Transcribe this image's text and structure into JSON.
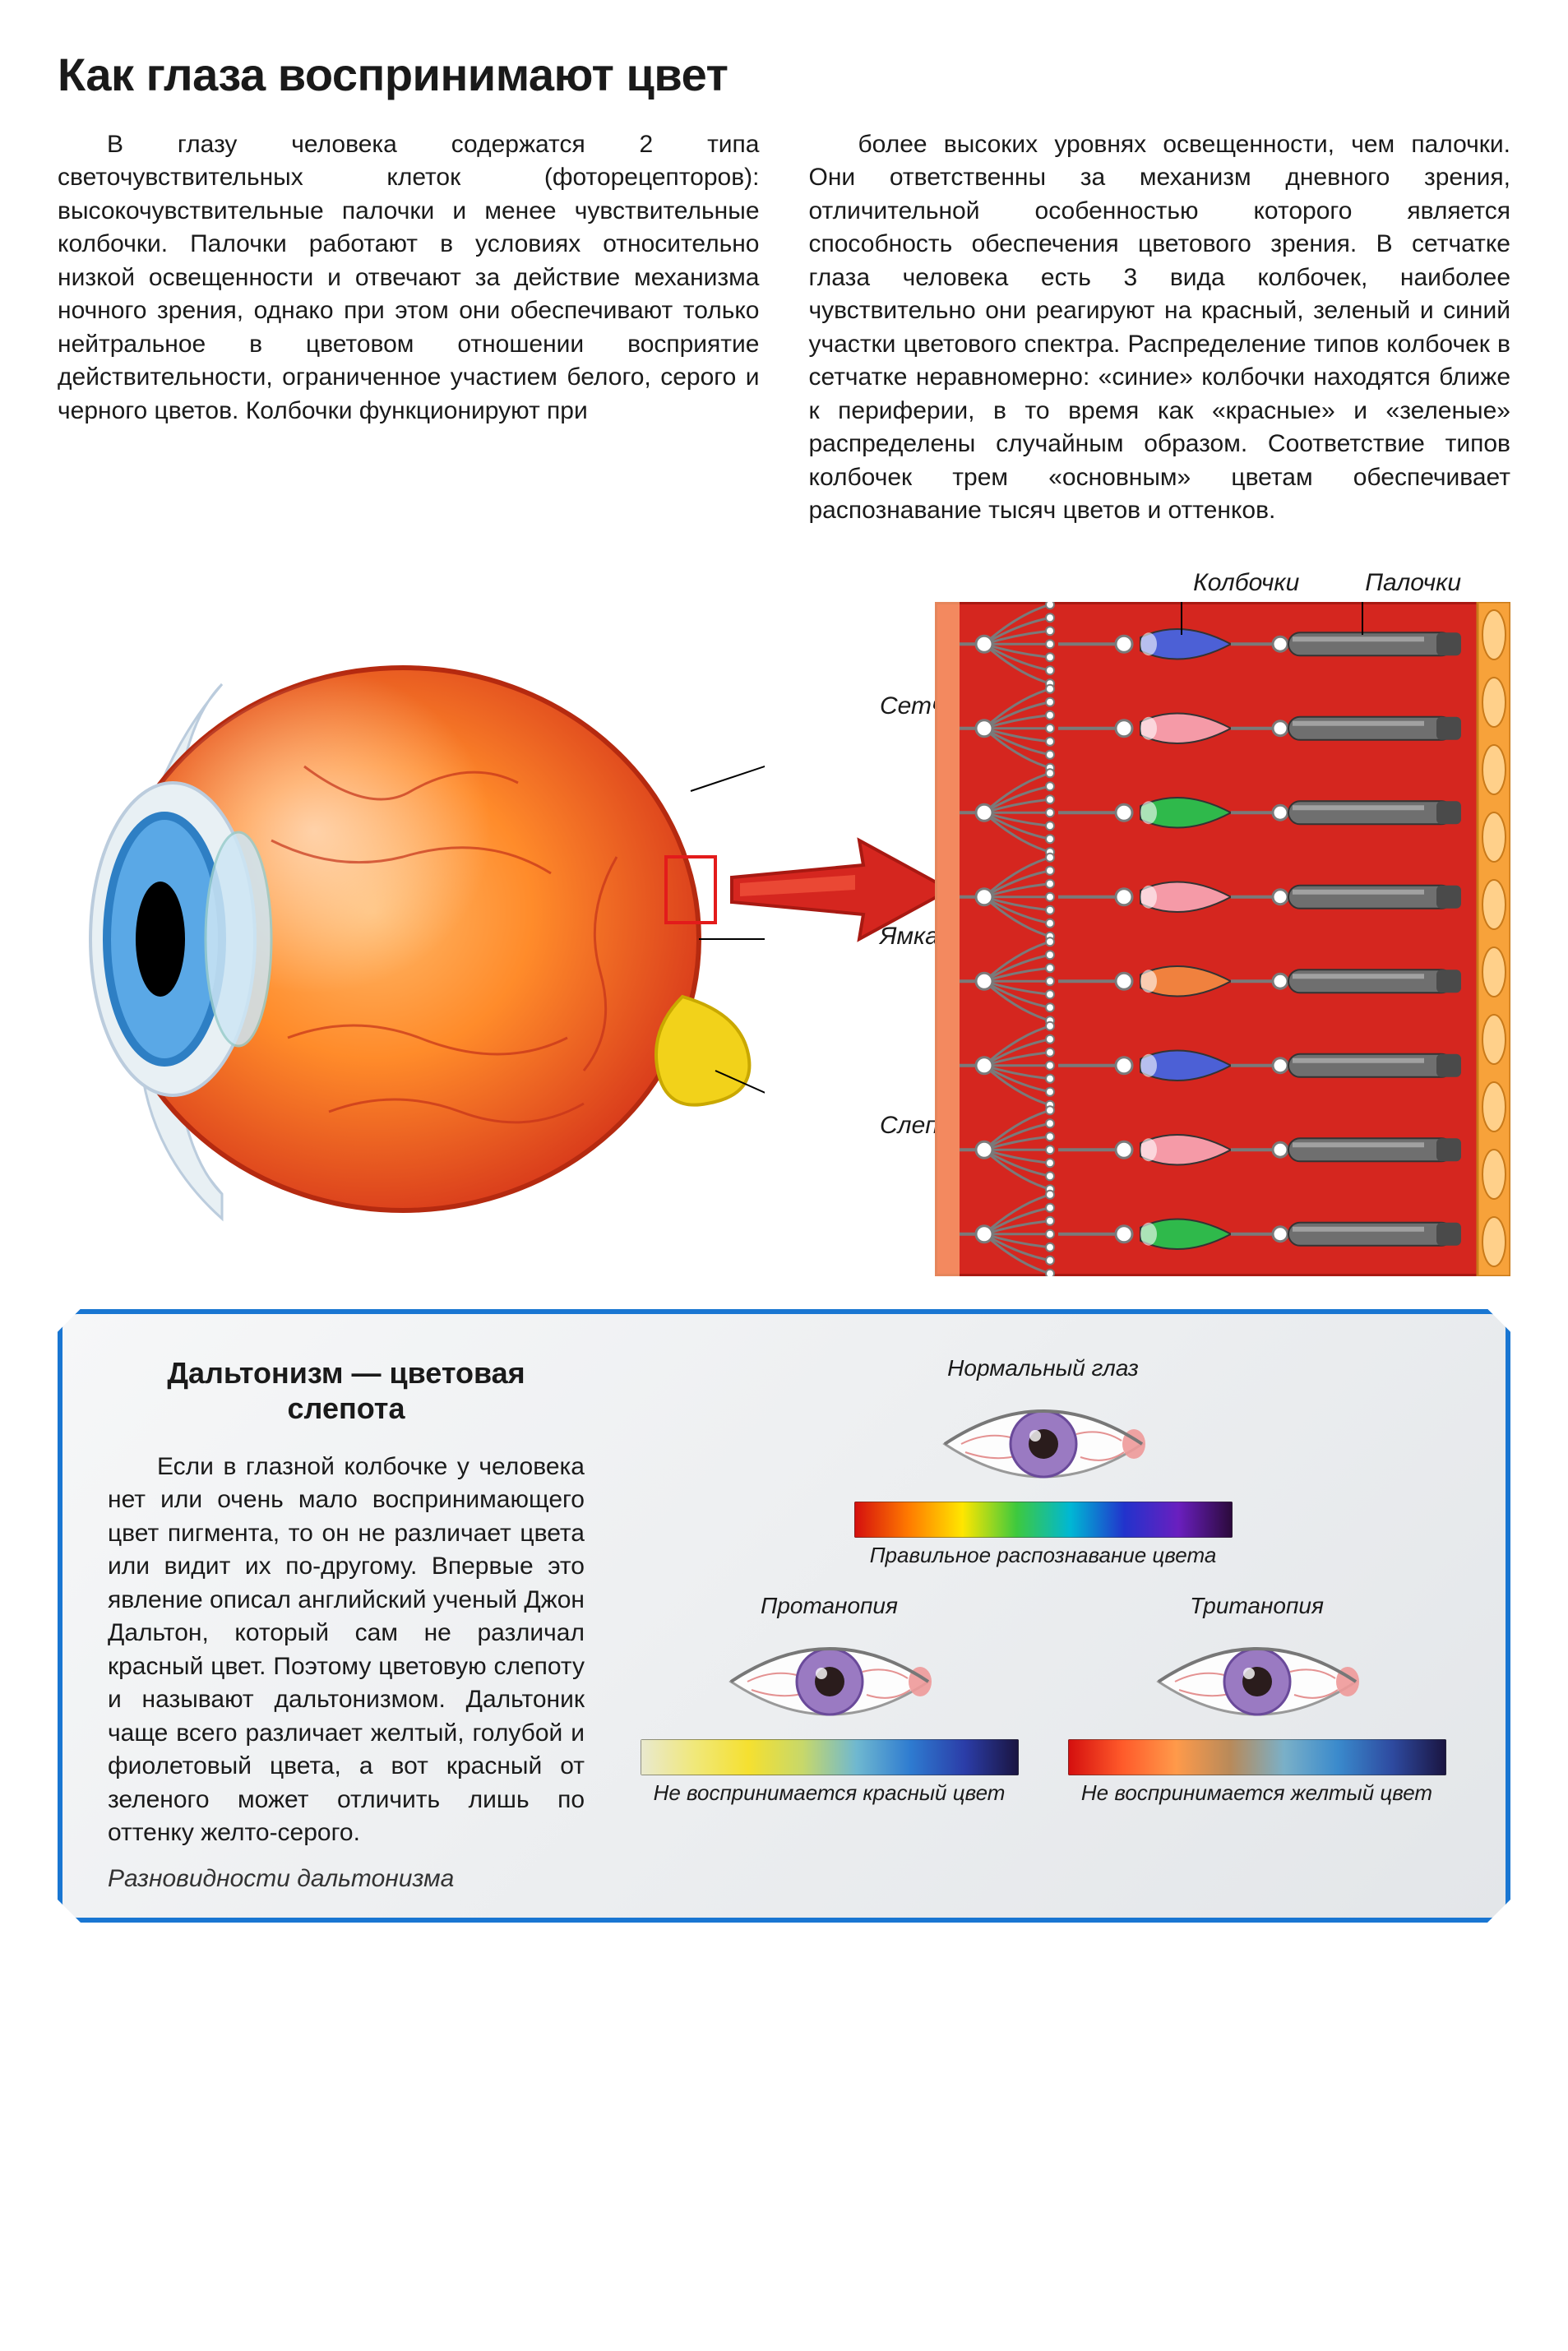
{
  "title": "Как глаза воспринимают цвет",
  "body_col1": "В глазу человека содержатся 2 типа светочувствительных клеток (фоторецепторов): высокочувствительные палочки и менее чувствительные колбочки. Палочки работают в условиях относительно низкой освещенности и отвечают за действие механизма ночного зрения, однако при этом они обеспечивают только нейтральное в цветовом отношении восприятие действительности, ограниченное участием белого, серого и черного цветов. Колбочки функционируют при",
  "body_col2": "более высоких уровнях освещенности, чем палочки. Они ответственны за механизм дневного зрения, отличительной особенностью которого является способность обеспечения цветового зрения. В сетчатке глаза человека есть 3 вида колбочек, наиболее чувствительно они реагируют на красный, зеленый и синий участки цветового спектра. Распределение типов колбочек в сетчатке неравномерно: «синие» колбочки находятся ближе к периферии, в то время как «красные» и «зеленые» распределены случайным образом. Соответствие типов колбочек трем «основным» цветам обеспечивает распознавание тысяч цветов и оттенков.",
  "eye_labels": {
    "retina": "Сетчатка",
    "fovea": "Ямка",
    "blind": "Слепое пятно"
  },
  "retina_labels": {
    "cones": "Колбочки",
    "rods": "Палочки"
  },
  "eye_diagram": {
    "sclera_color": "#e8f0f4",
    "iris_color": "#2e7fc4",
    "iris_inner": "#5aa8e6",
    "pupil_color": "#000000",
    "body_fill1": "#ff8b2a",
    "body_fill2": "#e23b1a",
    "vein_color": "#d03a16",
    "optic_nerve": "#f2d21a",
    "lens_color": "#b9d9ef",
    "callout_color": "#000000",
    "highlight_box": "#e31b1b"
  },
  "retina_diagram": {
    "bg": "#d5261f",
    "border": "#a81912",
    "cell_wall": "#f7a23a",
    "rod_body": "#6f6f6f",
    "rod_cap": "#4a4a4a",
    "signal": "#7a7a7a",
    "cone_colors": [
      "#4c60d6",
      "#f59aa7",
      "#2fb94b",
      "#f59aa7",
      "#f0813e",
      "#4c60d6",
      "#f59aa7",
      "#2fb94b"
    ],
    "rows": 8
  },
  "arrow_color": "#d5261f",
  "panel": {
    "title": "Дальтонизм — цветовая слепота",
    "body": "Если в глазной колбочке у человека нет или очень мало воспринимающего цвет пигмента, то он не различает цвета или видит их по-другому. Впервые это явление описал английский ученый Джон Дальтон, который сам не различал красный цвет. Поэтому цветовую слепоту и называют дальтонизмом. Дальтоник чаще всего различает желтый, голубой и фиолетовый цвета, а вот красный от зеленого может отличить лишь по оттенку желто-серого.",
    "caption": "Разновидности дальтонизма",
    "normal": {
      "title": "Нормальный глаз",
      "sub": "Правильное распознавание цвета"
    },
    "protan": {
      "title": "Протанопия",
      "sub": "Не воспринимается красный цвет"
    },
    "tritan": {
      "title": "Тританопия",
      "sub": "Не воспринимается желтый цвет"
    }
  },
  "spectra": {
    "normal": [
      "#d40e0e",
      "#ff7a00",
      "#ffe600",
      "#3ec93e",
      "#00b7d4",
      "#2233cc",
      "#6a1fbf",
      "#2b0a3a"
    ],
    "protan": [
      "#e9e9d0",
      "#f0e87a",
      "#f5e030",
      "#c7d86a",
      "#6fb8d0",
      "#2e7bd0",
      "#2b3da8",
      "#1a1440"
    ],
    "tritan": [
      "#d40e0e",
      "#ff5a2a",
      "#ff9a4a",
      "#b88a5a",
      "#7ab0c8",
      "#3a8acc",
      "#2e4aa0",
      "#1a1440"
    ]
  },
  "eye_icon": {
    "white": "#fdfdfd",
    "iris": "#9a7ac2",
    "pupil": "#2a1c1c",
    "corner": "#e99",
    "vein": "#d77"
  }
}
